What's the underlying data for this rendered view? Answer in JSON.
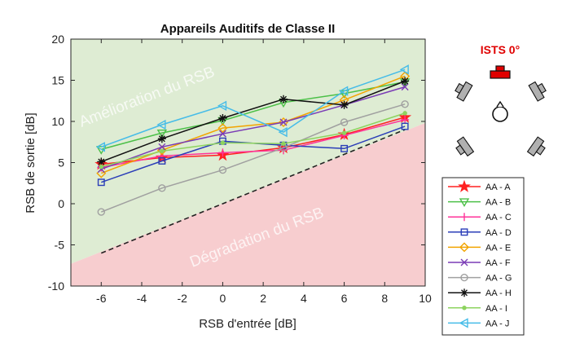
{
  "chart_data": {
    "type": "line",
    "title": "Appareils Auditifs de Classe II",
    "xlabel": "RSB d'entrée [dB]",
    "ylabel": "RSB de sortie [dB]",
    "xlim": [
      -7.5,
      10
    ],
    "ylim": [
      -10,
      20
    ],
    "xticks": [
      -6,
      -4,
      -2,
      0,
      2,
      4,
      6,
      8,
      10
    ],
    "yticks": [
      -10,
      -5,
      0,
      5,
      10,
      15,
      20
    ],
    "grid": false,
    "legend_position": "bottom-right (outside)",
    "regions": {
      "improvement_label": "Amélioration du RSB",
      "degradation_label": "Dégradation du RSB",
      "improvement_color": "#deecd3",
      "degradation_color": "#f7cdcf"
    },
    "reference_line": {
      "style": "dashed",
      "x": [
        -6,
        9
      ],
      "y": [
        -6,
        9
      ]
    },
    "x": [
      -6,
      -3,
      0,
      3,
      6,
      9
    ],
    "series": [
      {
        "name": "AA - A",
        "color": "#ff2020",
        "marker": "star",
        "values": [
          4.8,
          5.6,
          5.9,
          6.8,
          8.4,
          10.5
        ]
      },
      {
        "name": "AA - B",
        "color": "#4cc048",
        "marker": "tri-down",
        "values": [
          6.6,
          8.6,
          10.1,
          12.3,
          13.4,
          14.8
        ]
      },
      {
        "name": "AA - C",
        "color": "#ff3399",
        "marker": "plus",
        "values": [
          4.4,
          5.8,
          6.2,
          6.5,
          8.3,
          10.2
        ]
      },
      {
        "name": "AA - D",
        "color": "#2b3eb8",
        "marker": "square",
        "values": [
          2.6,
          5.2,
          7.6,
          7.1,
          6.7,
          9.4
        ]
      },
      {
        "name": "AA - E",
        "color": "#f2a400",
        "marker": "diamond",
        "values": [
          3.7,
          6.5,
          9.2,
          9.9,
          12.6,
          15.5
        ]
      },
      {
        "name": "AA - F",
        "color": "#7a3bb5",
        "marker": "x",
        "values": [
          4.2,
          6.9,
          8.5,
          9.9,
          12.0,
          14.2
        ]
      },
      {
        "name": "AA - G",
        "color": "#a0a0a0",
        "marker": "circle",
        "values": [
          -1.0,
          1.9,
          4.1,
          6.8,
          9.9,
          12.1
        ]
      },
      {
        "name": "AA - H",
        "color": "#111111",
        "marker": "asterisk",
        "values": [
          5.1,
          7.9,
          10.4,
          12.7,
          12.0,
          14.9
        ]
      },
      {
        "name": "AA - I",
        "color": "#8dd35f",
        "marker": "dot",
        "values": [
          4.5,
          6.4,
          7.4,
          7.3,
          8.6,
          11.0
        ]
      },
      {
        "name": "AA - J",
        "color": "#46bce8",
        "marker": "tri-left",
        "values": [
          6.9,
          9.6,
          11.9,
          8.7,
          13.7,
          16.3
        ]
      }
    ]
  },
  "setup_diagram": {
    "label": "ISTS 0°",
    "label_color": "#e00000",
    "front_speaker_color": "#e00000",
    "other_speakers_color": "#b0b0b0"
  }
}
